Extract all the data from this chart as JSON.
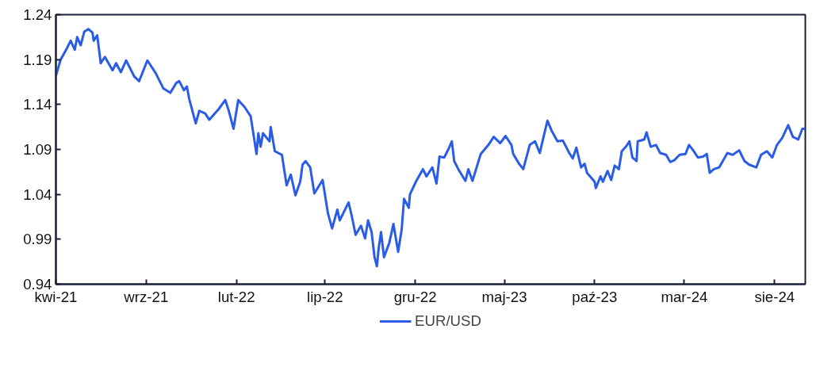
{
  "chart_data": {
    "type": "line",
    "x": [
      "2021-04-01",
      "2021-04-09",
      "2021-04-20",
      "2021-04-26",
      "2021-05-03",
      "2021-05-07",
      "2021-05-13",
      "2021-05-19",
      "2021-05-26",
      "2021-06-02",
      "2021-06-04",
      "2021-06-10",
      "2021-06-16",
      "2021-06-23",
      "2021-07-06",
      "2021-07-12",
      "2021-07-20",
      "2021-07-29",
      "2021-08-12",
      "2021-08-20",
      "2021-09-03",
      "2021-09-17",
      "2021-09-30",
      "2021-10-12",
      "2021-10-22",
      "2021-10-27",
      "2021-11-04",
      "2021-11-09",
      "2021-11-13",
      "2021-11-24",
      "2021-11-30",
      "2021-12-10",
      "2021-12-17",
      "2022-01-02",
      "2022-01-13",
      "2022-01-19",
      "2022-01-27",
      "2022-02-04",
      "2022-02-15",
      "2022-02-25",
      "2022-03-07",
      "2022-03-10",
      "2022-03-14",
      "2022-03-18",
      "2022-03-29",
      "2022-03-31",
      "2022-04-07",
      "2022-04-19",
      "2022-04-27",
      "2022-05-04",
      "2022-05-12",
      "2022-05-20",
      "2022-05-24",
      "2022-05-29",
      "2022-06-06",
      "2022-06-13",
      "2022-06-27",
      "2022-07-06",
      "2022-07-13",
      "2022-07-22",
      "2022-07-26",
      "2022-08-10",
      "2022-08-15",
      "2022-08-22",
      "2022-08-31",
      "2022-09-07",
      "2022-09-12",
      "2022-09-18",
      "2022-09-23",
      "2022-09-27",
      "2022-09-30",
      "2022-10-04",
      "2022-10-09",
      "2022-10-18",
      "2022-10-25",
      "2022-11-02",
      "2022-11-08",
      "2022-11-12",
      "2022-11-20",
      "2022-11-22",
      "2022-12-02",
      "2022-12-14",
      "2022-12-20",
      "2022-12-30",
      "2023-01-06",
      "2023-01-11",
      "2023-01-19",
      "2023-01-26",
      "2023-02-01",
      "2023-02-05",
      "2023-02-12",
      "2023-02-24",
      "2023-03-01",
      "2023-03-08",
      "2023-03-22",
      "2023-04-04",
      "2023-04-13",
      "2023-04-24",
      "2023-05-03",
      "2023-05-13",
      "2023-05-16",
      "2023-05-26",
      "2023-06-02",
      "2023-06-13",
      "2023-06-22",
      "2023-06-30",
      "2023-07-05",
      "2023-07-13",
      "2023-07-20",
      "2023-07-30",
      "2023-08-08",
      "2023-08-19",
      "2023-08-25",
      "2023-08-31",
      "2023-09-08",
      "2023-09-14",
      "2023-09-18",
      "2023-10-01",
      "2023-10-03",
      "2023-10-11",
      "2023-10-15",
      "2023-10-23",
      "2023-10-29",
      "2023-11-04",
      "2023-11-11",
      "2023-11-16",
      "2023-11-23",
      "2023-11-29",
      "2023-12-04",
      "2023-12-11",
      "2023-12-13",
      "2023-12-24",
      "2023-12-28",
      "2024-01-04",
      "2024-01-13",
      "2024-01-20",
      "2024-01-30",
      "2024-02-06",
      "2024-02-13",
      "2024-02-22",
      "2024-03-03",
      "2024-03-09",
      "2024-03-16",
      "2024-03-24",
      "2024-04-02",
      "2024-04-08",
      "2024-04-13",
      "2024-04-20",
      "2024-04-29",
      "2024-05-13",
      "2024-05-22",
      "2024-06-02",
      "2024-06-11",
      "2024-06-19",
      "2024-07-01",
      "2024-07-09",
      "2024-07-19",
      "2024-07-28",
      "2024-08-05",
      "2024-08-14",
      "2024-08-24",
      "2024-09-01",
      "2024-09-10",
      "2024-09-17",
      "2024-09-22"
    ],
    "series": [
      {
        "name": "EUR/USD",
        "color": "#2b5ce6",
        "values": [
          1.172,
          1.19,
          1.203,
          1.211,
          1.201,
          1.215,
          1.206,
          1.221,
          1.224,
          1.22,
          1.211,
          1.217,
          1.186,
          1.193,
          1.178,
          1.186,
          1.176,
          1.189,
          1.171,
          1.166,
          1.189,
          1.175,
          1.158,
          1.153,
          1.164,
          1.166,
          1.156,
          1.16,
          1.146,
          1.119,
          1.133,
          1.13,
          1.123,
          1.135,
          1.145,
          1.133,
          1.113,
          1.145,
          1.137,
          1.127,
          1.085,
          1.108,
          1.093,
          1.108,
          1.099,
          1.115,
          1.088,
          1.084,
          1.05,
          1.062,
          1.039,
          1.054,
          1.073,
          1.077,
          1.07,
          1.041,
          1.056,
          1.019,
          1.002,
          1.023,
          1.011,
          1.031,
          1.017,
          0.995,
          1.005,
          0.991,
          1.011,
          0.998,
          0.97,
          0.96,
          0.98,
          0.998,
          0.97,
          0.986,
          1.007,
          0.976,
          1.001,
          1.035,
          1.025,
          1.04,
          1.054,
          1.068,
          1.06,
          1.07,
          1.052,
          1.082,
          1.081,
          1.09,
          1.099,
          1.077,
          1.068,
          1.055,
          1.068,
          1.055,
          1.085,
          1.095,
          1.104,
          1.097,
          1.105,
          1.095,
          1.085,
          1.074,
          1.068,
          1.095,
          1.099,
          1.086,
          1.1,
          1.122,
          1.111,
          1.099,
          1.1,
          1.086,
          1.08,
          1.092,
          1.07,
          1.074,
          1.064,
          1.054,
          1.047,
          1.06,
          1.054,
          1.066,
          1.056,
          1.072,
          1.068,
          1.088,
          1.093,
          1.099,
          1.081,
          1.077,
          1.099,
          1.101,
          1.109,
          1.093,
          1.095,
          1.086,
          1.084,
          1.076,
          1.078,
          1.084,
          1.085,
          1.095,
          1.089,
          1.081,
          1.082,
          1.085,
          1.064,
          1.068,
          1.07,
          1.086,
          1.084,
          1.089,
          1.077,
          1.073,
          1.07,
          1.084,
          1.088,
          1.081,
          1.095,
          1.103,
          1.117,
          1.104,
          1.101,
          1.113,
          1.113
        ]
      }
    ],
    "xlim": [
      "2021-04-01",
      "2024-09-22"
    ],
    "xticks": [
      {
        "value": "2021-04-01",
        "label": "kwi-21"
      },
      {
        "value": "2021-09-01",
        "label": "wrz-21"
      },
      {
        "value": "2022-02-01",
        "label": "lut-22"
      },
      {
        "value": "2022-07-01",
        "label": "lip-22"
      },
      {
        "value": "2022-12-01",
        "label": "gru-22"
      },
      {
        "value": "2023-05-01",
        "label": "maj-23"
      },
      {
        "value": "2023-10-01",
        "label": "paź-23"
      },
      {
        "value": "2024-03-01",
        "label": "mar-24"
      },
      {
        "value": "2024-08-01",
        "label": "sie-24"
      }
    ],
    "ylim": [
      0.94,
      1.24
    ],
    "yticks": [
      0.94,
      0.99,
      1.04,
      1.09,
      1.14,
      1.19,
      1.24
    ],
    "grid": false,
    "legend": "bottom",
    "marker": "none",
    "line_style": "solid"
  }
}
